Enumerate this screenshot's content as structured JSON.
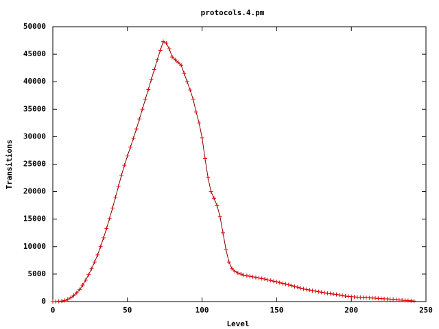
{
  "chart_data": {
    "type": "line",
    "title": "protocols.4.pm",
    "x_label": "Level",
    "y_label": "Transitions",
    "xlim": [
      0,
      250
    ],
    "xticks": [
      0,
      50,
      100,
      150,
      200,
      250
    ],
    "ylim": [
      0,
      50000
    ],
    "yticks": [
      0,
      5000,
      10000,
      15000,
      20000,
      25000,
      30000,
      35000,
      40000,
      45000,
      50000
    ],
    "color": "#e00000",
    "x": [
      0,
      2,
      4,
      6,
      8,
      10,
      12,
      14,
      16,
      18,
      20,
      22,
      24,
      26,
      28,
      30,
      32,
      34,
      36,
      38,
      40,
      42,
      44,
      46,
      48,
      50,
      52,
      54,
      56,
      58,
      60,
      62,
      64,
      66,
      68,
      70,
      72,
      74,
      76,
      78,
      80,
      82,
      84,
      86,
      88,
      90,
      92,
      94,
      96,
      98,
      100,
      102,
      104,
      106,
      108,
      110,
      112,
      114,
      116,
      118,
      120,
      122,
      124,
      126,
      128,
      130,
      132,
      134,
      136,
      138,
      140,
      142,
      144,
      146,
      148,
      150,
      152,
      154,
      156,
      158,
      160,
      162,
      164,
      166,
      168,
      170,
      172,
      174,
      176,
      178,
      180,
      182,
      184,
      186,
      188,
      190,
      192,
      194,
      196,
      198,
      200,
      202,
      204,
      206,
      208,
      210,
      212,
      214,
      216,
      218,
      220,
      222,
      224,
      226,
      228,
      230,
      232,
      234,
      236,
      238,
      240,
      242
    ],
    "values": [
      0,
      20,
      50,
      100,
      200,
      400,
      700,
      1100,
      1600,
      2200,
      3000,
      3900,
      4900,
      6000,
      7200,
      8500,
      10000,
      11600,
      13300,
      15100,
      17000,
      19000,
      21000,
      23000,
      24800,
      26500,
      28100,
      29700,
      31400,
      33200,
      35000,
      36800,
      38600,
      40400,
      42200,
      44000,
      45700,
      47300,
      47000,
      46000,
      44500,
      44000,
      43500,
      43000,
      41500,
      40000,
      38500,
      36800,
      34500,
      32500,
      29800,
      26000,
      22500,
      20000,
      18800,
      17500,
      15500,
      12500,
      9500,
      7200,
      6000,
      5500,
      5200,
      5000,
      4800,
      4700,
      4600,
      4500,
      4400,
      4300,
      4200,
      4100,
      3950,
      3850,
      3700,
      3600,
      3450,
      3300,
      3200,
      3050,
      2900,
      2750,
      2600,
      2450,
      2300,
      2200,
      2100,
      2000,
      1900,
      1800,
      1700,
      1600,
      1500,
      1450,
      1350,
      1300,
      1200,
      1100,
      1000,
      950,
      900,
      850,
      800,
      750,
      720,
      700,
      680,
      650,
      620,
      580,
      550,
      520,
      480,
      440,
      400,
      350,
      300,
      260,
      220,
      180,
      150,
      100
    ]
  }
}
